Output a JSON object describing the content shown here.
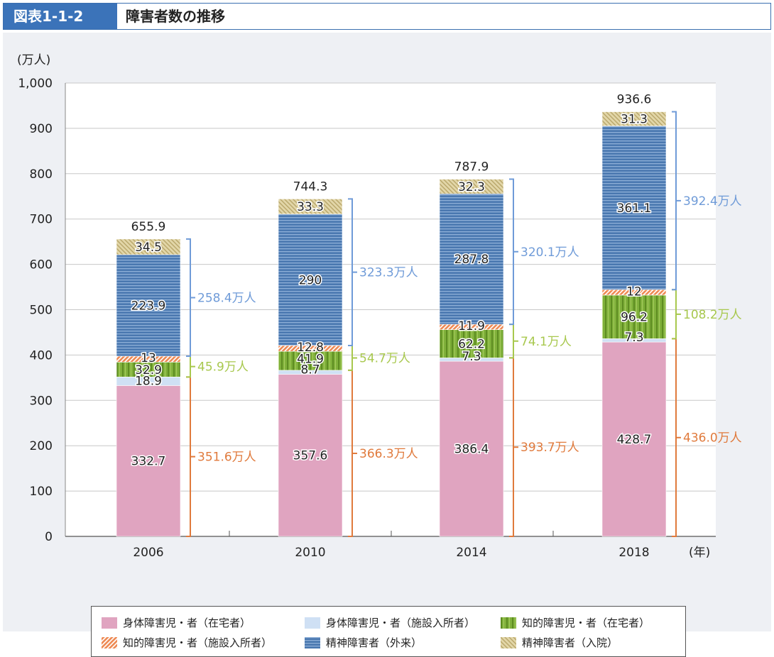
{
  "header": {
    "figure_number": "図表1-1-2",
    "title": "障害者数の推移"
  },
  "chart_data": {
    "type": "bar",
    "stacked": true,
    "ylabel": "(万人)",
    "xlabel": "(年)",
    "ylim": [
      0,
      1000
    ],
    "yticks": [
      "0",
      "100",
      "200",
      "300",
      "400",
      "500",
      "600",
      "700",
      "800",
      "900",
      "1,000"
    ],
    "categories": [
      "2006",
      "2010",
      "2014",
      "2018"
    ],
    "totals": [
      "655.9",
      "744.3",
      "787.9",
      "936.6"
    ],
    "series": [
      {
        "name": "身体障害児・者（在宅者）",
        "values": [
          332.7,
          357.6,
          386.4,
          428.7
        ],
        "color": "#e0a4c0"
      },
      {
        "name": "身体障害児・者（施設入所者）",
        "values": [
          18.9,
          8.7,
          7.3,
          7.3
        ],
        "color": "#cfe0f4"
      },
      {
        "name": "知的障害児・者（在宅者）",
        "values": [
          32.9,
          41.9,
          62.2,
          96.2
        ],
        "color": "#8db840"
      },
      {
        "name": "知的障害児・者（施設入所者）",
        "values": [
          13.0,
          12.8,
          11.9,
          12.0
        ],
        "color": "#ee8a55"
      },
      {
        "name": "精神障害者（外来）",
        "values": [
          223.9,
          290.0,
          287.8,
          361.1
        ],
        "color": "#4f7ab0"
      },
      {
        "name": "精神障害者（入院）",
        "values": [
          34.5,
          33.3,
          32.3,
          31.3
        ],
        "color": "#d8caa0"
      }
    ],
    "groups": [
      {
        "series_from": 0,
        "series_to": 1,
        "color": "#e07a3c",
        "labels": [
          "351.6万人",
          "366.3万人",
          "393.7万人",
          "436.0万人"
        ]
      },
      {
        "series_from": 2,
        "series_to": 3,
        "color": "#a8c84e",
        "labels": [
          "45.9万人",
          "54.7万人",
          "74.1万人",
          "108.2万人"
        ]
      },
      {
        "series_from": 4,
        "series_to": 5,
        "color": "#6f9bd8",
        "labels": [
          "258.4万人",
          "323.3万人",
          "320.1万人",
          "392.4万人"
        ]
      }
    ]
  }
}
